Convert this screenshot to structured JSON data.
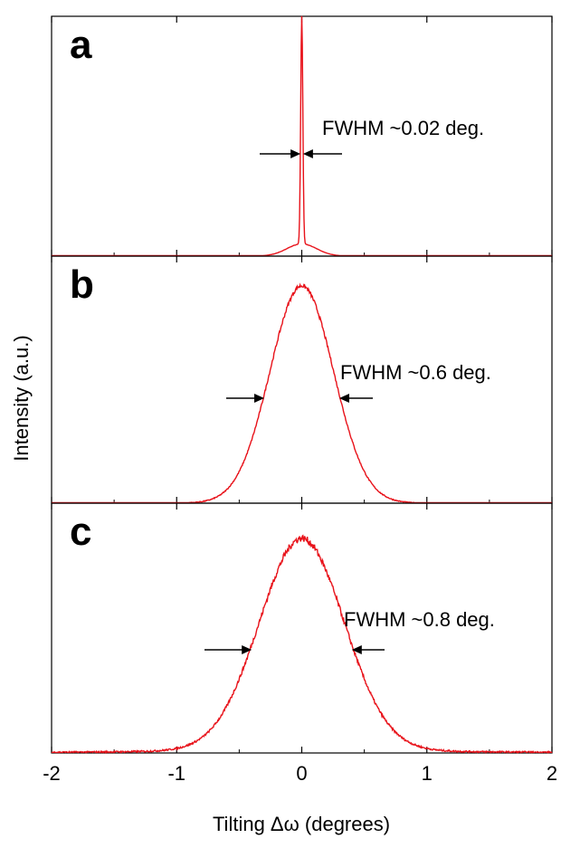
{
  "chart_data": {
    "type": "line",
    "xlabel": "Tilting Δω (degrees)",
    "ylabel": "Intensity (a.u.)",
    "xlim": [
      -2,
      2
    ],
    "xticks": [
      -2,
      -1,
      0,
      1,
      2
    ],
    "xtick_labels": [
      "-2",
      "-1",
      "0",
      "1",
      "2"
    ],
    "line_color": "#e8121a",
    "panels": [
      {
        "label": "a",
        "fwhm_deg": 0.02,
        "annotation": "FWHM ~0.02 deg.",
        "peak_center": 0.0,
        "peak_height": 0.95,
        "base_level": 0.0,
        "wing_height": 0.05,
        "wing_sigma": 0.12
      },
      {
        "label": "b",
        "fwhm_deg": 0.6,
        "annotation": "FWHM ~0.6 deg.",
        "peak_center": 0.0,
        "peak_height": 0.88,
        "base_level": 0.0
      },
      {
        "label": "c",
        "fwhm_deg": 0.8,
        "annotation": "FWHM ~0.8 deg.",
        "peak_center": 0.0,
        "peak_height": 0.84,
        "base_level": 0.02
      }
    ]
  }
}
